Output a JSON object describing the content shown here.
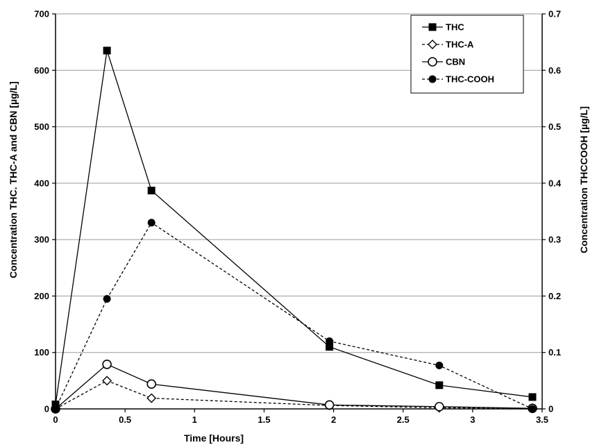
{
  "chart_data": {
    "type": "line",
    "xlabel": "Time [Hours]",
    "ylabel_left": "Concentration THC. THC-A and CBN [µg/L]",
    "ylabel_right": "Concentration THCCOOH [µg/L]",
    "xlim": [
      0,
      3.5
    ],
    "ylim_left": [
      0,
      700
    ],
    "ylim_right": [
      0,
      0.7
    ],
    "x_ticks": [
      0,
      0.5,
      1,
      1.5,
      2,
      2.5,
      3,
      3.5
    ],
    "x_tick_labels": [
      "0",
      "0.5",
      "1",
      "1.5",
      "2",
      "2.5",
      "3",
      "3.5"
    ],
    "y_left_ticks": [
      0,
      100,
      200,
      300,
      400,
      500,
      600,
      700
    ],
    "y_left_tick_labels": [
      "0",
      "100",
      "200",
      "300",
      "400",
      "500",
      "600",
      "700"
    ],
    "y_right_ticks": [
      0,
      0.1,
      0.2,
      0.3,
      0.4,
      0.5,
      0.6,
      0.7
    ],
    "y_right_tick_labels": [
      "0",
      "0.1",
      "0.2",
      "0.3",
      "0.4",
      "0.5",
      "0.6",
      "0.7"
    ],
    "grid": "horizontal",
    "legend_position": "top-right",
    "series": [
      {
        "name": "THC",
        "axis": "left",
        "marker": "square",
        "dash": "solid",
        "x": [
          0,
          0.37,
          0.69,
          1.97,
          2.76,
          3.43
        ],
        "y": [
          8,
          635,
          387,
          110,
          42,
          21
        ]
      },
      {
        "name": "THC-A",
        "axis": "left",
        "marker": "diamond",
        "dash": "dashed",
        "x": [
          0,
          0.37,
          0.69,
          1.97,
          2.76,
          3.43
        ],
        "y": [
          0,
          50,
          19,
          6,
          2,
          1
        ]
      },
      {
        "name": "CBN",
        "axis": "left",
        "marker": "open-circle",
        "dash": "solid",
        "x": [
          0,
          0.37,
          0.69,
          1.97,
          2.76,
          3.43
        ],
        "y": [
          0,
          79,
          44,
          7,
          4,
          1
        ]
      },
      {
        "name": "THC-COOH",
        "axis": "right",
        "marker": "filled-circle",
        "dash": "dashed",
        "x": [
          0,
          0.37,
          0.69,
          1.97,
          2.76,
          3.43
        ],
        "y": [
          0,
          0.195,
          0.33,
          0.12,
          0.077,
          0.0
        ]
      }
    ]
  }
}
